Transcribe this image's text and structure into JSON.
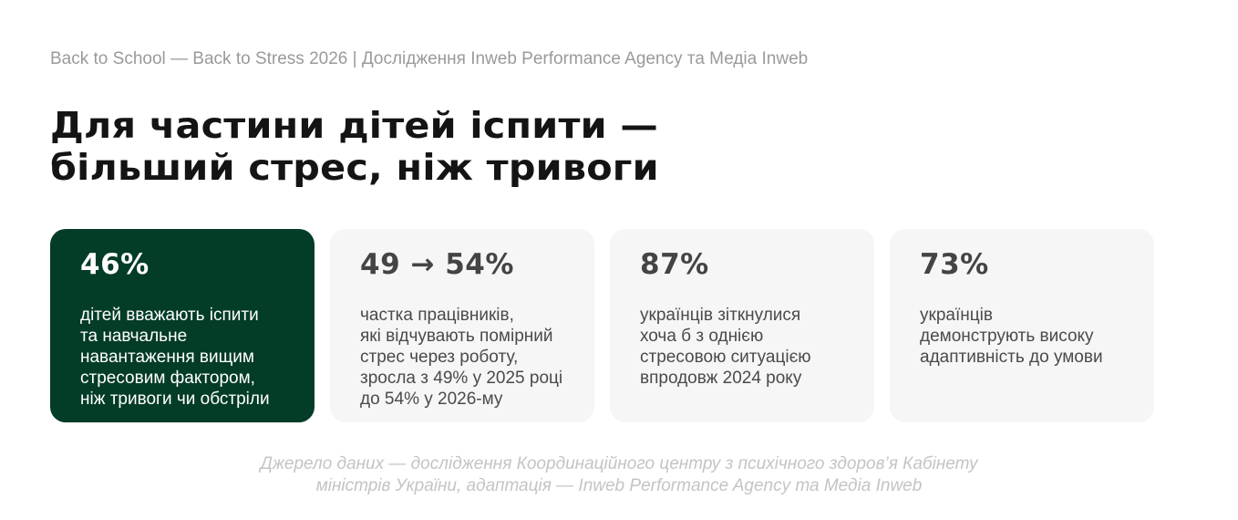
{
  "kicker": "Back to School — Back to Stress 2026 | Дослідження Inweb Performance Agency та Медіа Inweb",
  "headline": {
    "lines": [
      "Для частини дітей іспити —",
      "більший стрес, ніж тривоги"
    ]
  },
  "cards": [
    {
      "value": "46%",
      "lines": [
        "дітей вважають іспити",
        "та навчальне",
        "навантаження вищим",
        "стресовим фактором,",
        "ніж тривоги чи обстріли"
      ]
    },
    {
      "value": "49 → 54%",
      "lines": [
        "частка працівників,",
        "які відчувають помірний",
        "стрес через роботу,",
        "зросла з 49% у 2025 році",
        "до 54% у 2026-му"
      ]
    },
    {
      "value": "87%",
      "lines": [
        "українців зіткнулися",
        "хоча б з однією",
        "стресовою ситуацією",
        "впродовж 2024 року"
      ]
    },
    {
      "value": "73%",
      "lines": [
        "українців",
        "демонструють високу",
        "адаптивність до умови"
      ]
    }
  ],
  "source": {
    "lines": [
      "Джерело даних — дослідження Координаційного центру з психічного здоров’я Кабінету",
      "міністрів України, адаптація — Inweb Performance Agency та Медіа Inweb"
    ]
  },
  "colors": {
    "highlight_card": "#033c27",
    "card_background": "#f6f6f6",
    "headline": "#141414",
    "muted_text": "#9a9a9a"
  }
}
